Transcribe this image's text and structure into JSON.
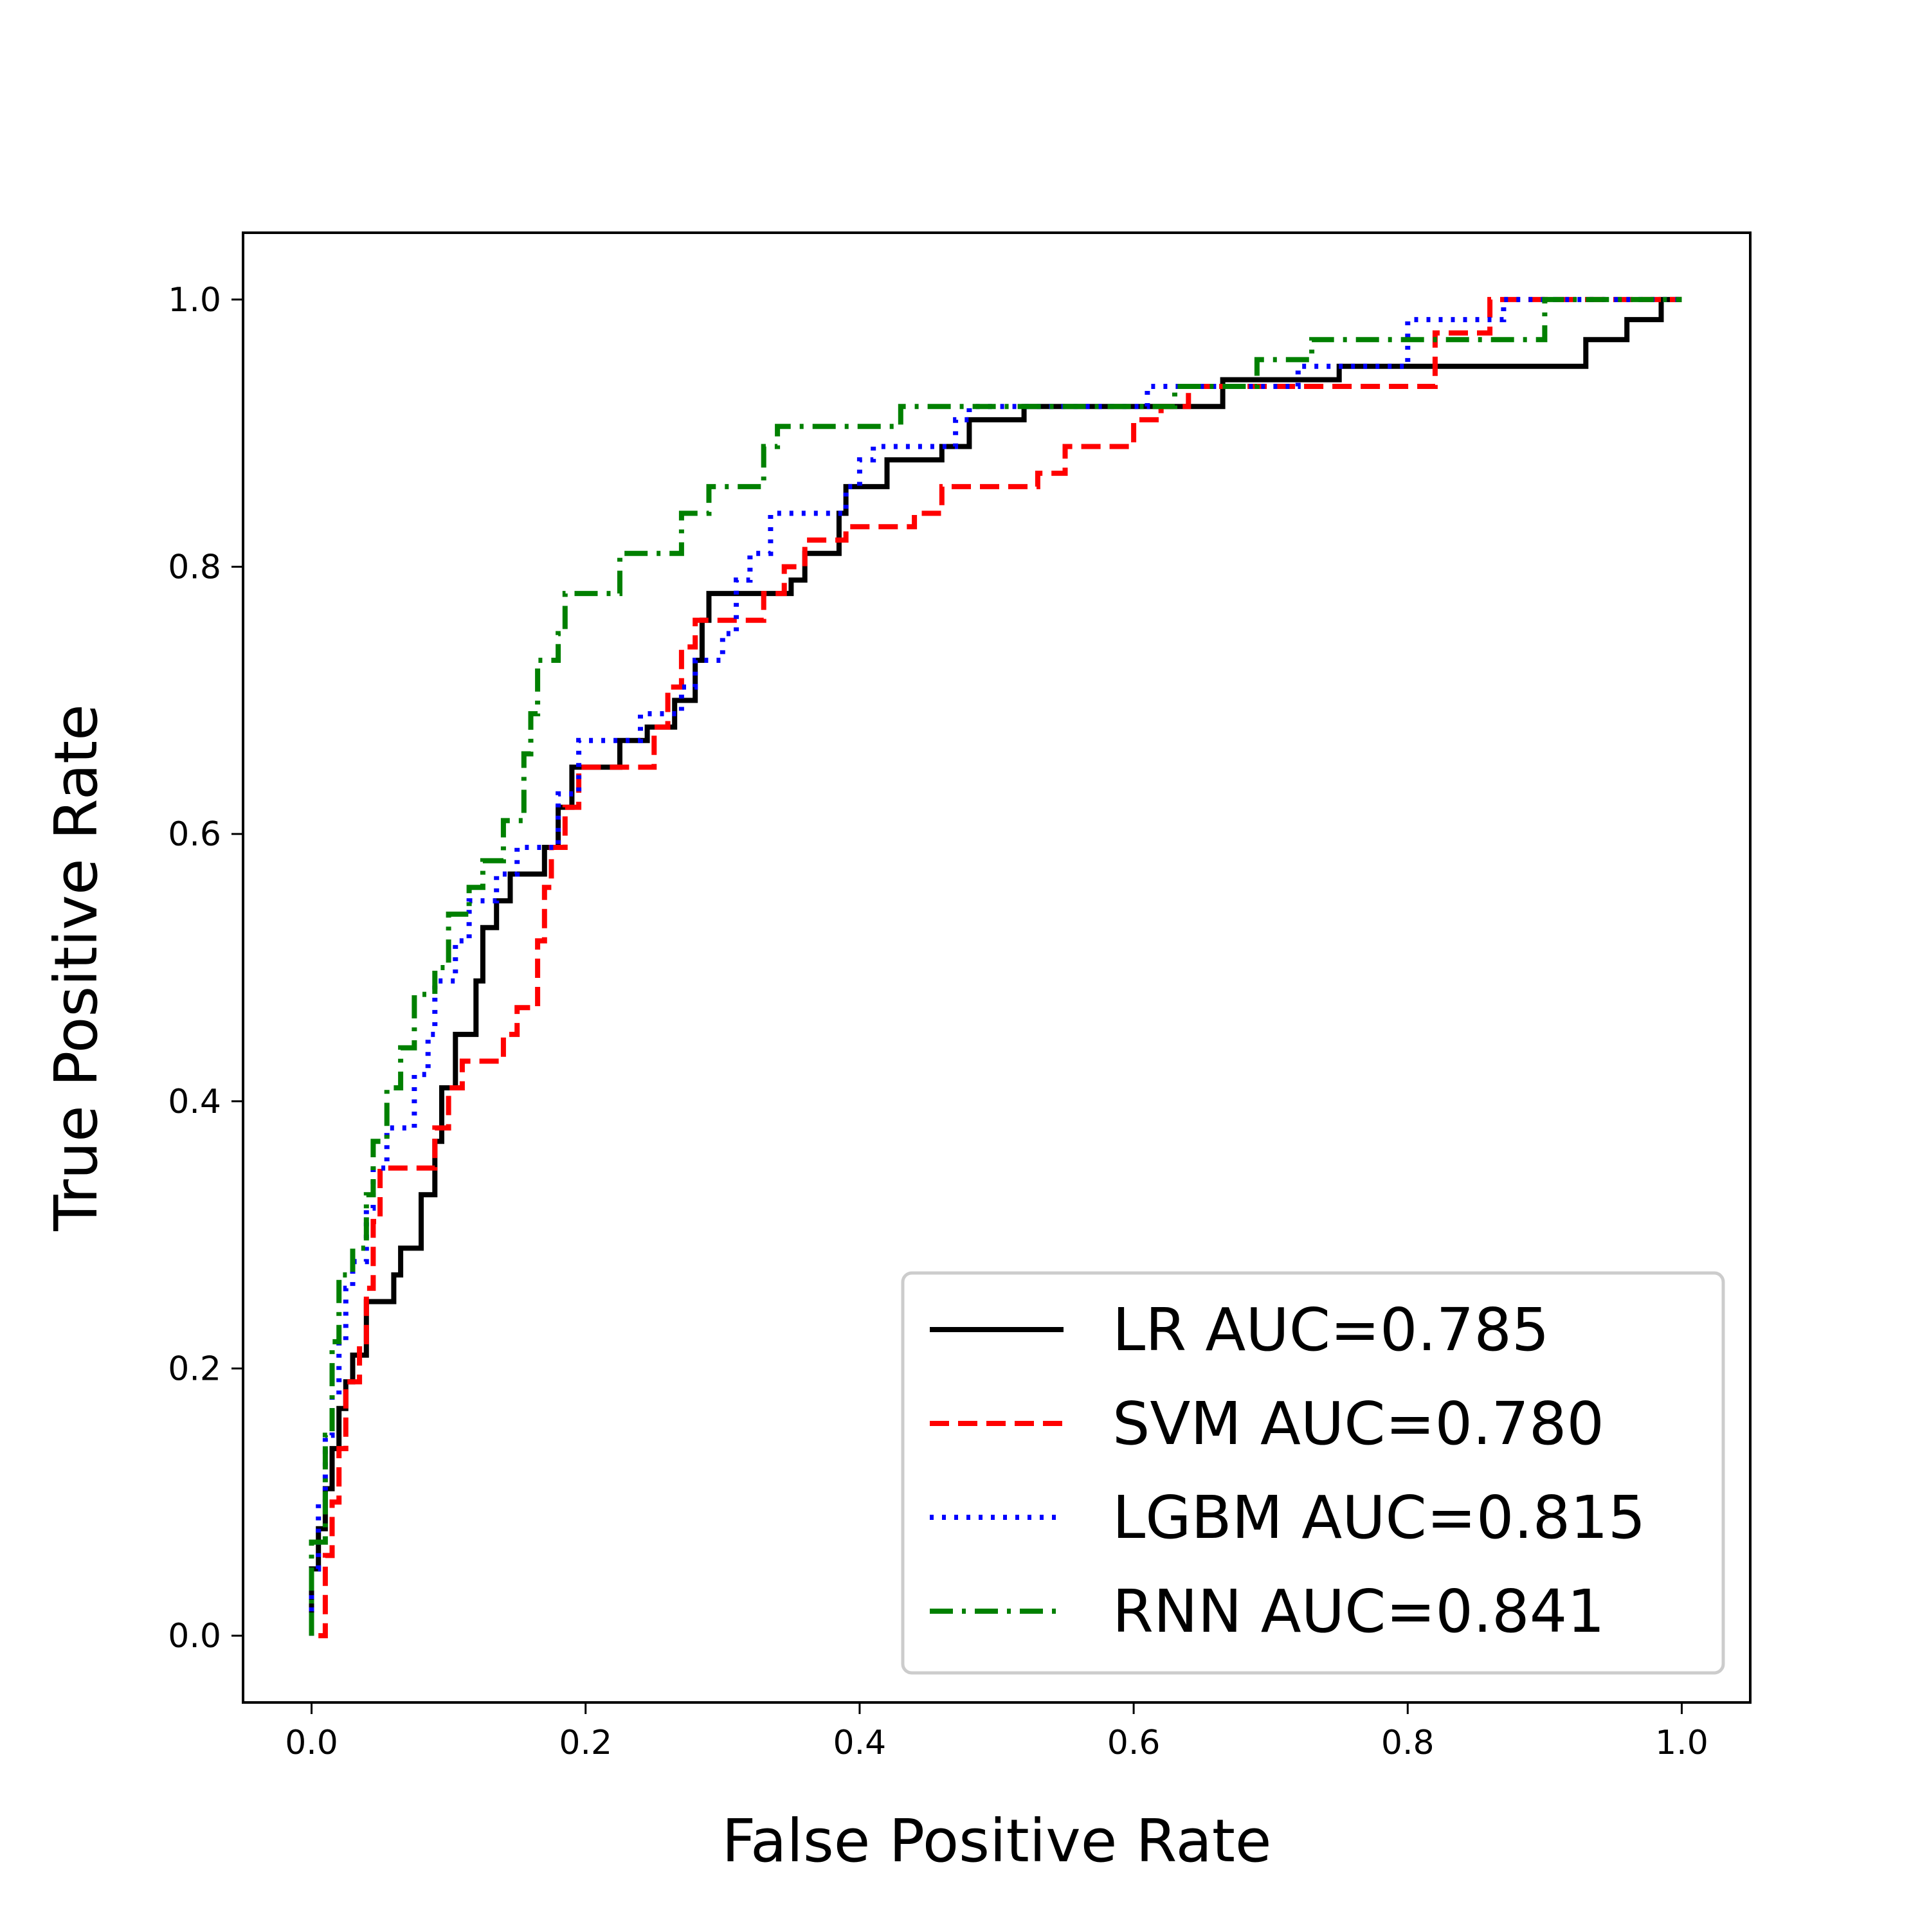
{
  "chart_data": {
    "type": "line",
    "title": "",
    "xlabel": "False Positive Rate",
    "ylabel": "True Positive Rate",
    "xlim": [
      -0.05,
      1.05
    ],
    "ylim": [
      -0.05,
      1.05
    ],
    "x_ticks": [
      "0.0",
      "0.2",
      "0.4",
      "0.6",
      "0.8",
      "1.0"
    ],
    "y_ticks": [
      "0.0",
      "0.2",
      "0.4",
      "0.6",
      "0.8",
      "1.0"
    ],
    "grid": false,
    "legend_position": "lower-right",
    "series": [
      {
        "name": "LR AUC=0.785",
        "color": "#000000",
        "style": "solid",
        "points": [
          [
            0,
            0
          ],
          [
            0,
            0.05
          ],
          [
            0.005,
            0.05
          ],
          [
            0.005,
            0.08
          ],
          [
            0.01,
            0.08
          ],
          [
            0.01,
            0.11
          ],
          [
            0.015,
            0.11
          ],
          [
            0.015,
            0.14
          ],
          [
            0.02,
            0.14
          ],
          [
            0.02,
            0.17
          ],
          [
            0.025,
            0.17
          ],
          [
            0.025,
            0.19
          ],
          [
            0.03,
            0.19
          ],
          [
            0.03,
            0.21
          ],
          [
            0.04,
            0.21
          ],
          [
            0.04,
            0.25
          ],
          [
            0.06,
            0.25
          ],
          [
            0.06,
            0.27
          ],
          [
            0.065,
            0.27
          ],
          [
            0.065,
            0.29
          ],
          [
            0.08,
            0.29
          ],
          [
            0.08,
            0.33
          ],
          [
            0.09,
            0.33
          ],
          [
            0.09,
            0.37
          ],
          [
            0.095,
            0.37
          ],
          [
            0.095,
            0.41
          ],
          [
            0.105,
            0.41
          ],
          [
            0.105,
            0.45
          ],
          [
            0.12,
            0.45
          ],
          [
            0.12,
            0.49
          ],
          [
            0.125,
            0.49
          ],
          [
            0.125,
            0.53
          ],
          [
            0.135,
            0.53
          ],
          [
            0.135,
            0.55
          ],
          [
            0.145,
            0.55
          ],
          [
            0.145,
            0.57
          ],
          [
            0.17,
            0.57
          ],
          [
            0.17,
            0.59
          ],
          [
            0.18,
            0.59
          ],
          [
            0.18,
            0.62
          ],
          [
            0.19,
            0.62
          ],
          [
            0.19,
            0.65
          ],
          [
            0.225,
            0.65
          ],
          [
            0.225,
            0.67
          ],
          [
            0.245,
            0.67
          ],
          [
            0.245,
            0.68
          ],
          [
            0.265,
            0.68
          ],
          [
            0.265,
            0.7
          ],
          [
            0.28,
            0.7
          ],
          [
            0.28,
            0.73
          ],
          [
            0.285,
            0.73
          ],
          [
            0.285,
            0.76
          ],
          [
            0.29,
            0.76
          ],
          [
            0.29,
            0.78
          ],
          [
            0.35,
            0.78
          ],
          [
            0.35,
            0.79
          ],
          [
            0.36,
            0.79
          ],
          [
            0.36,
            0.81
          ],
          [
            0.385,
            0.81
          ],
          [
            0.385,
            0.84
          ],
          [
            0.39,
            0.84
          ],
          [
            0.39,
            0.86
          ],
          [
            0.42,
            0.86
          ],
          [
            0.42,
            0.88
          ],
          [
            0.46,
            0.88
          ],
          [
            0.46,
            0.89
          ],
          [
            0.48,
            0.89
          ],
          [
            0.48,
            0.91
          ],
          [
            0.52,
            0.91
          ],
          [
            0.52,
            0.92
          ],
          [
            0.665,
            0.92
          ],
          [
            0.665,
            0.94
          ],
          [
            0.75,
            0.94
          ],
          [
            0.75,
            0.95
          ],
          [
            0.93,
            0.95
          ],
          [
            0.93,
            0.97
          ],
          [
            0.96,
            0.97
          ],
          [
            0.96,
            0.985
          ],
          [
            0.985,
            0.985
          ],
          [
            0.985,
            1.0
          ],
          [
            1.0,
            1.0
          ]
        ]
      },
      {
        "name": "SVM AUC=0.780",
        "color": "#ff0000",
        "style": "dashed",
        "points": [
          [
            0.005,
            0
          ],
          [
            0.01,
            0
          ],
          [
            0.01,
            0.06
          ],
          [
            0.015,
            0.06
          ],
          [
            0.015,
            0.1
          ],
          [
            0.02,
            0.1
          ],
          [
            0.02,
            0.14
          ],
          [
            0.025,
            0.14
          ],
          [
            0.025,
            0.19
          ],
          [
            0.035,
            0.19
          ],
          [
            0.035,
            0.22
          ],
          [
            0.04,
            0.22
          ],
          [
            0.04,
            0.26
          ],
          [
            0.045,
            0.26
          ],
          [
            0.045,
            0.31
          ],
          [
            0.05,
            0.31
          ],
          [
            0.05,
            0.35
          ],
          [
            0.09,
            0.35
          ],
          [
            0.09,
            0.38
          ],
          [
            0.1,
            0.38
          ],
          [
            0.1,
            0.41
          ],
          [
            0.11,
            0.41
          ],
          [
            0.11,
            0.43
          ],
          [
            0.14,
            0.43
          ],
          [
            0.14,
            0.45
          ],
          [
            0.15,
            0.45
          ],
          [
            0.15,
            0.47
          ],
          [
            0.165,
            0.47
          ],
          [
            0.165,
            0.52
          ],
          [
            0.17,
            0.52
          ],
          [
            0.17,
            0.56
          ],
          [
            0.175,
            0.56
          ],
          [
            0.175,
            0.59
          ],
          [
            0.185,
            0.59
          ],
          [
            0.185,
            0.62
          ],
          [
            0.195,
            0.62
          ],
          [
            0.195,
            0.65
          ],
          [
            0.25,
            0.65
          ],
          [
            0.25,
            0.68
          ],
          [
            0.26,
            0.68
          ],
          [
            0.26,
            0.71
          ],
          [
            0.27,
            0.71
          ],
          [
            0.27,
            0.74
          ],
          [
            0.28,
            0.74
          ],
          [
            0.28,
            0.76
          ],
          [
            0.33,
            0.76
          ],
          [
            0.33,
            0.78
          ],
          [
            0.345,
            0.78
          ],
          [
            0.345,
            0.8
          ],
          [
            0.36,
            0.8
          ],
          [
            0.36,
            0.82
          ],
          [
            0.39,
            0.82
          ],
          [
            0.39,
            0.83
          ],
          [
            0.44,
            0.83
          ],
          [
            0.44,
            0.84
          ],
          [
            0.46,
            0.84
          ],
          [
            0.46,
            0.86
          ],
          [
            0.53,
            0.86
          ],
          [
            0.53,
            0.87
          ],
          [
            0.55,
            0.87
          ],
          [
            0.55,
            0.89
          ],
          [
            0.6,
            0.89
          ],
          [
            0.6,
            0.91
          ],
          [
            0.62,
            0.91
          ],
          [
            0.62,
            0.92
          ],
          [
            0.64,
            0.92
          ],
          [
            0.64,
            0.935
          ],
          [
            0.82,
            0.935
          ],
          [
            0.82,
            0.975
          ],
          [
            0.86,
            0.975
          ],
          [
            0.86,
            1.0
          ],
          [
            1.0,
            1.0
          ]
        ]
      },
      {
        "name": "LGBM AUC=0.815",
        "color": "#0000ff",
        "style": "dotted",
        "points": [
          [
            0,
            0
          ],
          [
            0,
            0.05
          ],
          [
            0.005,
            0.05
          ],
          [
            0.005,
            0.1
          ],
          [
            0.01,
            0.1
          ],
          [
            0.01,
            0.15
          ],
          [
            0.015,
            0.15
          ],
          [
            0.015,
            0.18
          ],
          [
            0.02,
            0.18
          ],
          [
            0.02,
            0.22
          ],
          [
            0.025,
            0.22
          ],
          [
            0.025,
            0.26
          ],
          [
            0.03,
            0.26
          ],
          [
            0.03,
            0.28
          ],
          [
            0.04,
            0.28
          ],
          [
            0.04,
            0.32
          ],
          [
            0.045,
            0.32
          ],
          [
            0.045,
            0.35
          ],
          [
            0.055,
            0.35
          ],
          [
            0.055,
            0.38
          ],
          [
            0.075,
            0.38
          ],
          [
            0.075,
            0.42
          ],
          [
            0.085,
            0.42
          ],
          [
            0.085,
            0.45
          ],
          [
            0.09,
            0.45
          ],
          [
            0.09,
            0.49
          ],
          [
            0.105,
            0.49
          ],
          [
            0.105,
            0.52
          ],
          [
            0.115,
            0.52
          ],
          [
            0.115,
            0.55
          ],
          [
            0.135,
            0.55
          ],
          [
            0.135,
            0.57
          ],
          [
            0.15,
            0.57
          ],
          [
            0.15,
            0.59
          ],
          [
            0.18,
            0.59
          ],
          [
            0.18,
            0.63
          ],
          [
            0.195,
            0.63
          ],
          [
            0.195,
            0.67
          ],
          [
            0.24,
            0.67
          ],
          [
            0.24,
            0.69
          ],
          [
            0.27,
            0.69
          ],
          [
            0.27,
            0.71
          ],
          [
            0.28,
            0.71
          ],
          [
            0.28,
            0.73
          ],
          [
            0.3,
            0.73
          ],
          [
            0.3,
            0.75
          ],
          [
            0.31,
            0.75
          ],
          [
            0.31,
            0.79
          ],
          [
            0.32,
            0.79
          ],
          [
            0.32,
            0.81
          ],
          [
            0.335,
            0.81
          ],
          [
            0.335,
            0.84
          ],
          [
            0.39,
            0.84
          ],
          [
            0.39,
            0.86
          ],
          [
            0.4,
            0.86
          ],
          [
            0.4,
            0.88
          ],
          [
            0.41,
            0.88
          ],
          [
            0.41,
            0.89
          ],
          [
            0.47,
            0.89
          ],
          [
            0.47,
            0.91
          ],
          [
            0.48,
            0.91
          ],
          [
            0.48,
            0.92
          ],
          [
            0.61,
            0.92
          ],
          [
            0.61,
            0.935
          ],
          [
            0.72,
            0.935
          ],
          [
            0.72,
            0.95
          ],
          [
            0.8,
            0.95
          ],
          [
            0.8,
            0.985
          ],
          [
            0.87,
            0.985
          ],
          [
            0.87,
            1.0
          ],
          [
            1.0,
            1.0
          ]
        ]
      },
      {
        "name": "RNN AUC=0.841",
        "color": "#008000",
        "style": "dashdot",
        "points": [
          [
            0,
            0
          ],
          [
            0,
            0.07
          ],
          [
            0.01,
            0.07
          ],
          [
            0.01,
            0.15
          ],
          [
            0.015,
            0.15
          ],
          [
            0.015,
            0.22
          ],
          [
            0.02,
            0.22
          ],
          [
            0.02,
            0.27
          ],
          [
            0.03,
            0.27
          ],
          [
            0.03,
            0.29
          ],
          [
            0.04,
            0.29
          ],
          [
            0.04,
            0.33
          ],
          [
            0.045,
            0.33
          ],
          [
            0.045,
            0.37
          ],
          [
            0.055,
            0.37
          ],
          [
            0.055,
            0.41
          ],
          [
            0.065,
            0.41
          ],
          [
            0.065,
            0.44
          ],
          [
            0.075,
            0.44
          ],
          [
            0.075,
            0.48
          ],
          [
            0.09,
            0.48
          ],
          [
            0.09,
            0.5
          ],
          [
            0.1,
            0.5
          ],
          [
            0.1,
            0.54
          ],
          [
            0.115,
            0.54
          ],
          [
            0.115,
            0.56
          ],
          [
            0.125,
            0.56
          ],
          [
            0.125,
            0.58
          ],
          [
            0.14,
            0.58
          ],
          [
            0.14,
            0.61
          ],
          [
            0.155,
            0.61
          ],
          [
            0.155,
            0.66
          ],
          [
            0.16,
            0.66
          ],
          [
            0.16,
            0.69
          ],
          [
            0.165,
            0.69
          ],
          [
            0.165,
            0.73
          ],
          [
            0.18,
            0.73
          ],
          [
            0.18,
            0.75
          ],
          [
            0.185,
            0.75
          ],
          [
            0.185,
            0.78
          ],
          [
            0.225,
            0.78
          ],
          [
            0.225,
            0.81
          ],
          [
            0.27,
            0.81
          ],
          [
            0.27,
            0.84
          ],
          [
            0.29,
            0.84
          ],
          [
            0.29,
            0.86
          ],
          [
            0.33,
            0.86
          ],
          [
            0.33,
            0.89
          ],
          [
            0.34,
            0.89
          ],
          [
            0.34,
            0.905
          ],
          [
            0.43,
            0.905
          ],
          [
            0.43,
            0.92
          ],
          [
            0.63,
            0.92
          ],
          [
            0.63,
            0.935
          ],
          [
            0.69,
            0.935
          ],
          [
            0.69,
            0.955
          ],
          [
            0.73,
            0.955
          ],
          [
            0.73,
            0.97
          ],
          [
            0.9,
            0.97
          ],
          [
            0.9,
            1.0
          ],
          [
            1.0,
            1.0
          ]
        ]
      }
    ]
  }
}
